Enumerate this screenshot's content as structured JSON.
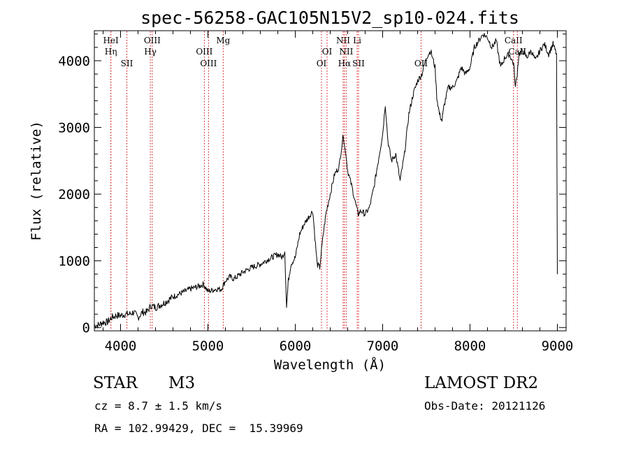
{
  "chart_data": {
    "type": "line",
    "title": "spec-56258-GAC105N15V2_sp10-024.fits",
    "xlabel": "Wavelength (Å)",
    "ylabel": "Flux (relative)",
    "xlim": [
      3700,
      9100
    ],
    "ylim": [
      -50,
      4450
    ],
    "xticks": [
      4000,
      5000,
      6000,
      7000,
      8000,
      9000
    ],
    "xtick_labels": [
      "4000",
      "5000",
      "6000",
      "7000",
      "8000",
      "9000"
    ],
    "yticks": [
      0,
      1000,
      2000,
      3000,
      4000
    ],
    "ytick_labels": [
      "0",
      "1000",
      "2000",
      "3000",
      "4000"
    ],
    "grid": false,
    "line_color": "#000000",
    "marker_color": "#cc0000",
    "series": [
      {
        "x": [
          3700,
          3750,
          3800,
          3850,
          3900,
          3950,
          4000,
          4050,
          4100,
          4150,
          4200,
          4250,
          4300,
          4350,
          4400,
          4500,
          4600,
          4700,
          4800,
          4900,
          4950,
          5000,
          5050,
          5100,
          5150,
          5200,
          5250,
          5300,
          5400,
          5500,
          5600,
          5700,
          5800,
          5850,
          5880,
          5900,
          5920,
          5950,
          6000,
          6050,
          6100,
          6150,
          6200,
          6250,
          6280,
          6300,
          6320,
          6350,
          6400,
          6450,
          6500,
          6550,
          6565,
          6580,
          6600,
          6650,
          6700,
          6720,
          6750,
          6800,
          6850,
          6900,
          6950,
          7000,
          7030,
          7060,
          7100,
          7150,
          7200,
          7250,
          7300,
          7350,
          7400,
          7450,
          7500,
          7550,
          7600,
          7620,
          7650,
          7680,
          7700,
          7750,
          7800,
          7850,
          7900,
          7950,
          8000,
          8050,
          8100,
          8150,
          8200,
          8250,
          8300,
          8350,
          8400,
          8450,
          8500,
          8520,
          8540,
          8560,
          8600,
          8650,
          8700,
          8750,
          8800,
          8850,
          8900,
          8950,
          8990,
          9000
        ],
        "values": [
          30,
          40,
          80,
          80,
          150,
          180,
          180,
          200,
          200,
          230,
          150,
          230,
          230,
          330,
          300,
          370,
          460,
          520,
          580,
          620,
          650,
          540,
          560,
          580,
          570,
          700,
          760,
          730,
          830,
          900,
          950,
          1030,
          1100,
          1050,
          1150,
          300,
          700,
          950,
          1050,
          1400,
          1550,
          1650,
          1750,
          950,
          900,
          1150,
          1400,
          1700,
          2000,
          2300,
          2400,
          2900,
          2700,
          2600,
          2350,
          2100,
          1800,
          1700,
          1750,
          1700,
          1800,
          2100,
          2500,
          2900,
          3350,
          2800,
          2500,
          2600,
          2200,
          2600,
          3200,
          3500,
          3700,
          3800,
          4050,
          4150,
          3900,
          3450,
          3200,
          3100,
          3300,
          3600,
          3600,
          3700,
          3900,
          3800,
          3900,
          4200,
          4300,
          4400,
          4350,
          4200,
          4300,
          3900,
          4050,
          4100,
          3950,
          3600,
          3800,
          4100,
          4150,
          4050,
          4150,
          4000,
          4150,
          4250,
          4100,
          4250,
          4100,
          800
        ]
      }
    ],
    "line_markers": [
      {
        "x": 3889,
        "label": "HeI",
        "row": 1
      },
      {
        "x": 3889,
        "label": "Hη",
        "row": 2
      },
      {
        "x": 4072,
        "label": "SII",
        "row": 3
      },
      {
        "x": 4363,
        "label": "OIII",
        "row": 1
      },
      {
        "x": 4341,
        "label": "Hγ",
        "row": 2
      },
      {
        "x": 4959,
        "label": "OIII",
        "row": 2
      },
      {
        "x": 5007,
        "label": "OIII",
        "row": 3
      },
      {
        "x": 5175,
        "label": "Mg",
        "row": 1
      },
      {
        "x": 6300,
        "label": "OI",
        "row": 3
      },
      {
        "x": 6364,
        "label": "OI",
        "row": 2
      },
      {
        "x": 6548,
        "label": "NII",
        "row": 1
      },
      {
        "x": 6583,
        "label": "NII",
        "row": 2
      },
      {
        "x": 6563,
        "label": "Hα",
        "row": 3
      },
      {
        "x": 6708,
        "label": "Li",
        "row": 1
      },
      {
        "x": 6724,
        "label": "SII",
        "row": 3
      },
      {
        "x": 7440,
        "label": "OII",
        "row": 3
      },
      {
        "x": 8498,
        "label": "CaII",
        "row": 1
      },
      {
        "x": 8542,
        "label": "CaII",
        "row": 2
      }
    ]
  },
  "info": {
    "object_class": "STAR",
    "subclass": "M3",
    "survey": "LAMOST DR2",
    "redshift": "cz = 8.7 ± 1.5 km/s",
    "obs_date": "Obs-Date: 20121126",
    "coordinates": "RA = 102.99429, DEC =  15.39969"
  }
}
